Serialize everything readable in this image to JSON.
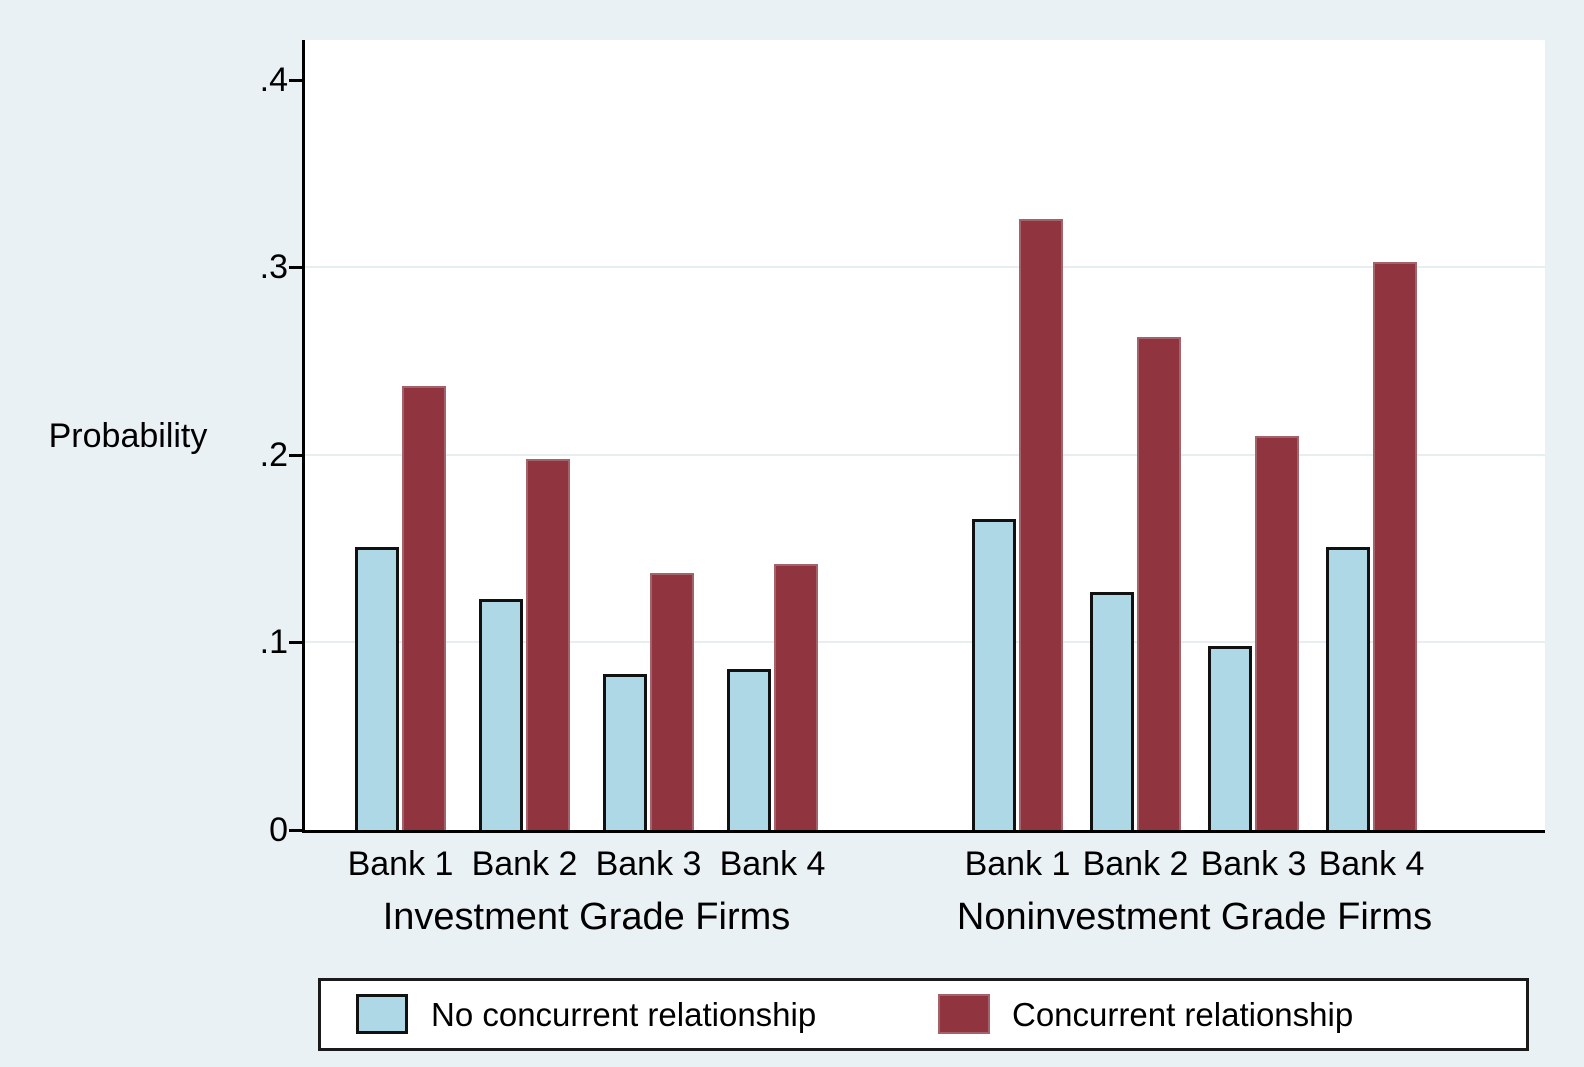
{
  "figure": {
    "background_color": "#eaf1f4",
    "plot_background": "#ffffff",
    "axis_color": "#000000",
    "gridline_color": "#e7eef0"
  },
  "chart_data": {
    "type": "bar",
    "title": "",
    "ylabel": "Probability",
    "xlabel": "",
    "ylim": [
      0,
      0.42
    ],
    "y_tick_values": [
      0,
      0.1,
      0.2,
      0.3,
      0.4
    ],
    "y_tick_labels": [
      "0",
      ".1",
      ".2",
      ".3",
      ".4"
    ],
    "grid_values": [
      0.1,
      0.2,
      0.3
    ],
    "grid_on": true,
    "legend_position": "bottom",
    "series_names": [
      "No concurrent relationship",
      "Concurrent relationship"
    ],
    "series_colors": [
      "#afd8e6",
      "#903540"
    ],
    "groups": [
      {
        "label": "Investment Grade Firms",
        "categories": [
          "Bank 1",
          "Bank 2",
          "Bank 3",
          "Bank 4"
        ],
        "series": [
          {
            "name": "No concurrent relationship",
            "values": [
              0.151,
              0.123,
              0.083,
              0.086
            ]
          },
          {
            "name": "Concurrent relationship",
            "values": [
              0.237,
              0.198,
              0.137,
              0.142
            ]
          }
        ]
      },
      {
        "label": "Noninvestment Grade Firms",
        "categories": [
          "Bank 1",
          "Bank 2",
          "Bank 3",
          "Bank 4"
        ],
        "series": [
          {
            "name": "No concurrent relationship",
            "values": [
              0.166,
              0.127,
              0.098,
              0.151
            ]
          },
          {
            "name": "Concurrent relationship",
            "values": [
              0.326,
              0.263,
              0.21,
              0.303
            ]
          }
        ]
      }
    ],
    "legend": {
      "entries": [
        {
          "label": "No concurrent relationship",
          "color": "#afd8e6",
          "border": "#111111"
        },
        {
          "label": "Concurrent relationship",
          "color": "#903540",
          "border": "#a4626b"
        }
      ]
    }
  }
}
